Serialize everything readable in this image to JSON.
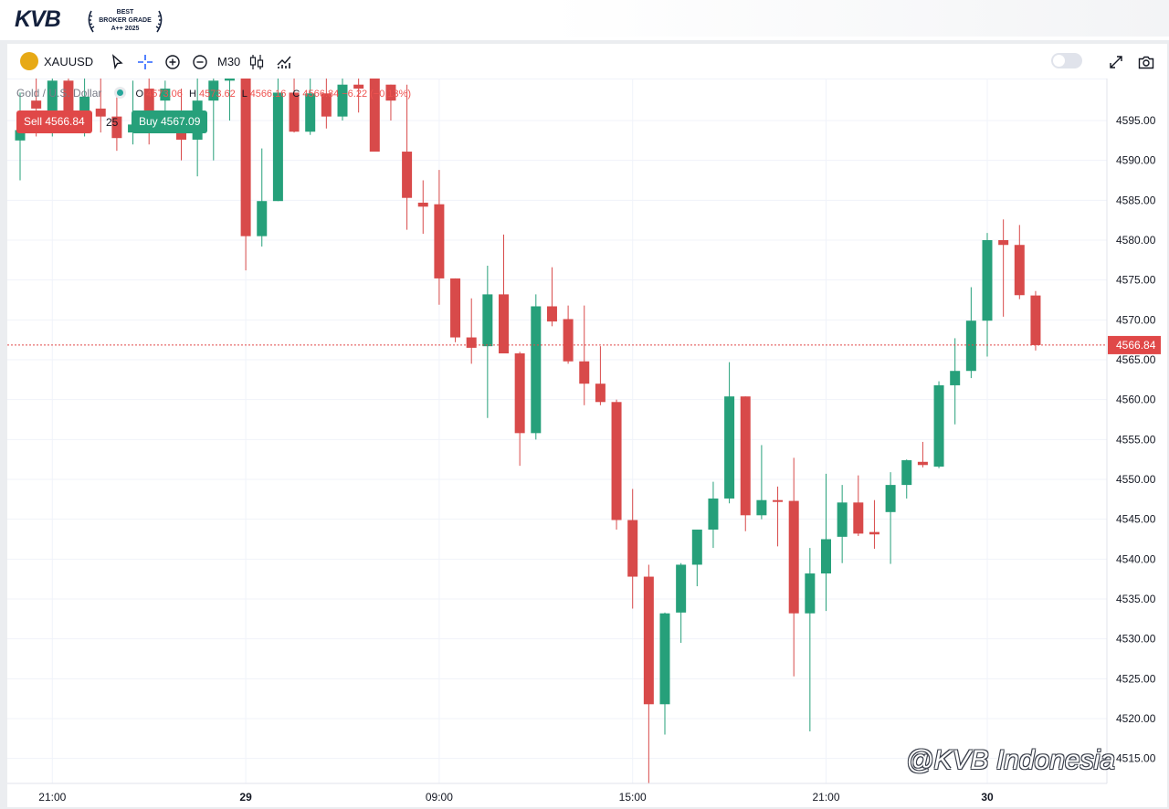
{
  "brand": {
    "logo_text": "KVB",
    "award_lines": [
      "BEST",
      "BROKER GRADE",
      "A++ 2025"
    ]
  },
  "toolbar": {
    "symbol": "XAUUSD",
    "timeframe": "M30",
    "icons": [
      "cursor-icon",
      "crosshair-icon",
      "zoom-in-icon",
      "zoom-out-icon",
      "candles-icon",
      "indicators-icon",
      "fullscreen-icon",
      "camera-icon"
    ]
  },
  "legend": {
    "title": "Gold / U.S. Dollar",
    "o_label": "O",
    "o_value": "4573.06",
    "h_label": "H",
    "h_value": "4573.62",
    "l_label": "L",
    "l_value": "4566.16",
    "c_label": "C",
    "c_value": "4566.84",
    "change": "−6.22 (−0.13%)"
  },
  "trade": {
    "sell_label": "Sell 4566.84",
    "spread": "25",
    "buy_label": "Buy 4567.09"
  },
  "watermark": "@KVB Indonesia",
  "colors": {
    "up": "#26a07a",
    "down": "#d84a4a",
    "price_line": "#e04848"
  },
  "chart_data": {
    "type": "candlestick",
    "symbol": "XAUUSD",
    "timeframe": "M30",
    "ylim": [
      4510,
      4600
    ],
    "y_ticks": [
      4515,
      4520,
      4525,
      4530,
      4535,
      4540,
      4545,
      4550,
      4555,
      4560,
      4565,
      4570,
      4575,
      4580,
      4585,
      4590,
      4595
    ],
    "x_labels": [
      {
        "bar": 2,
        "label": "21:00",
        "bold": false
      },
      {
        "bar": 14,
        "label": "29",
        "bold": true
      },
      {
        "bar": 26,
        "label": "09:00",
        "bold": false
      },
      {
        "bar": 38,
        "label": "15:00",
        "bold": false
      },
      {
        "bar": 50,
        "label": "21:00",
        "bold": false
      },
      {
        "bar": 60,
        "label": "30",
        "bold": true
      }
    ],
    "last_price": 4566.84,
    "grid": true,
    "candles": [
      {
        "o": 4592.5,
        "h": 4598.5,
        "l": 4587.5,
        "c": 4593.8
      },
      {
        "o": 4597.5,
        "h": 4602,
        "l": 4593,
        "c": 4596.5
      },
      {
        "o": 4594.5,
        "h": 4602,
        "l": 4593,
        "c": 4600
      },
      {
        "o": 4600,
        "h": 4602,
        "l": 4593.5,
        "c": 4596
      },
      {
        "o": 4596,
        "h": 4602,
        "l": 4593,
        "c": 4598
      },
      {
        "o": 4596.5,
        "h": 4602,
        "l": 4593.5,
        "c": 4595.5
      },
      {
        "o": 4595.5,
        "h": 4599,
        "l": 4591.2,
        "c": 4592.8
      },
      {
        "o": 4593.5,
        "h": 4600,
        "l": 4592,
        "c": 4594.5
      },
      {
        "o": 4599,
        "h": 4602,
        "l": 4592,
        "c": 4596
      },
      {
        "o": 4597.5,
        "h": 4600,
        "l": 4596,
        "c": 4599
      },
      {
        "o": 4596,
        "h": 4599,
        "l": 4590,
        "c": 4592.6
      },
      {
        "o": 4592.6,
        "h": 4601,
        "l": 4588,
        "c": 4597.5
      },
      {
        "o": 4597.5,
        "h": 4601,
        "l": 4590,
        "c": 4600
      },
      {
        "o": 4600,
        "h": 4602,
        "l": 4595,
        "c": 4601
      },
      {
        "o": 4601,
        "h": 4603,
        "l": 4576.2,
        "c": 4580.5
      },
      {
        "o": 4580.5,
        "h": 4591.5,
        "l": 4579.2,
        "c": 4584.9
      },
      {
        "o": 4584.9,
        "h": 4603,
        "l": 4584.9,
        "c": 4598.5
      },
      {
        "o": 4598.5,
        "h": 4602,
        "l": 4593.5,
        "c": 4593.6
      },
      {
        "o": 4593.6,
        "h": 4601,
        "l": 4593.2,
        "c": 4598.4
      },
      {
        "o": 4598.4,
        "h": 4602,
        "l": 4594,
        "c": 4595.5
      },
      {
        "o": 4595.5,
        "h": 4602,
        "l": 4595,
        "c": 4599.5
      },
      {
        "o": 4599.5,
        "h": 4601,
        "l": 4596,
        "c": 4599
      },
      {
        "o": 4601,
        "h": 4601.4,
        "l": 4591.5,
        "c": 4591.1
      },
      {
        "o": 4599.5,
        "h": 4599.5,
        "l": 4595,
        "c": 4597.5
      },
      {
        "o": 4591.1,
        "h": 4599.5,
        "l": 4581.3,
        "c": 4585.3
      },
      {
        "o": 4584.7,
        "h": 4587.5,
        "l": 4580.8,
        "c": 4584.2
      },
      {
        "o": 4584.5,
        "h": 4588.8,
        "l": 4571.9,
        "c": 4575.2
      },
      {
        "o": 4575.2,
        "h": 4575.2,
        "l": 4567.2,
        "c": 4567.8
      },
      {
        "o": 4567.8,
        "h": 4572.7,
        "l": 4564.5,
        "c": 4566.5
      },
      {
        "o": 4566.7,
        "h": 4576.8,
        "l": 4557.7,
        "c": 4573.2
      },
      {
        "o": 4573.2,
        "h": 4580.7,
        "l": 4565.8,
        "c": 4565.8
      },
      {
        "o": 4565.8,
        "h": 4566,
        "l": 4551.7,
        "c": 4555.8
      },
      {
        "o": 4555.8,
        "h": 4573.2,
        "l": 4555,
        "c": 4571.7
      },
      {
        "o": 4571.7,
        "h": 4576.6,
        "l": 4569.2,
        "c": 4569.8
      },
      {
        "o": 4570.1,
        "h": 4571.8,
        "l": 4564.5,
        "c": 4564.8
      },
      {
        "o": 4564.8,
        "h": 4571.8,
        "l": 4559.3,
        "c": 4562
      },
      {
        "o": 4562,
        "h": 4566.7,
        "l": 4559.3,
        "c": 4559.7
      },
      {
        "o": 4559.7,
        "h": 4560,
        "l": 4543.7,
        "c": 4544.9
      },
      {
        "o": 4544.9,
        "h": 4548.8,
        "l": 4533.8,
        "c": 4537.8
      },
      {
        "o": 4537.8,
        "h": 4539.3,
        "l": 4510.5,
        "c": 4521.8
      },
      {
        "o": 4521.8,
        "h": 4533.3,
        "l": 4518,
        "c": 4533.2
      },
      {
        "o": 4533.3,
        "h": 4539.5,
        "l": 4529.5,
        "c": 4539.3
      },
      {
        "o": 4539.3,
        "h": 4543.7,
        "l": 4536.6,
        "c": 4543.7
      },
      {
        "o": 4543.7,
        "h": 4549.7,
        "l": 4541.4,
        "c": 4547.6
      },
      {
        "o": 4547.6,
        "h": 4564.7,
        "l": 4547,
        "c": 4560.4
      },
      {
        "o": 4560.4,
        "h": 4560.4,
        "l": 4543.5,
        "c": 4545.5
      },
      {
        "o": 4545.5,
        "h": 4554.3,
        "l": 4545,
        "c": 4547.4
      },
      {
        "o": 4547.4,
        "h": 4549.1,
        "l": 4541.6,
        "c": 4547.3
      },
      {
        "o": 4547.3,
        "h": 4552.7,
        "l": 4525.3,
        "c": 4533.2
      },
      {
        "o": 4533.2,
        "h": 4541.4,
        "l": 4518.4,
        "c": 4538.2
      },
      {
        "o": 4538.2,
        "h": 4550.7,
        "l": 4533.5,
        "c": 4542.5
      },
      {
        "o": 4542.8,
        "h": 4549.3,
        "l": 4539.5,
        "c": 4547.1
      },
      {
        "o": 4547.1,
        "h": 4550.5,
        "l": 4542.9,
        "c": 4543.2
      },
      {
        "o": 4543.4,
        "h": 4547.4,
        "l": 4541.3,
        "c": 4543.1
      },
      {
        "o": 4545.9,
        "h": 4550.9,
        "l": 4539.4,
        "c": 4549.3
      },
      {
        "o": 4549.3,
        "h": 4552.5,
        "l": 4547.6,
        "c": 4552.4
      },
      {
        "o": 4552.2,
        "h": 4554.7,
        "l": 4551.5,
        "c": 4551.8
      },
      {
        "o": 4551.6,
        "h": 4562.3,
        "l": 4551.4,
        "c": 4561.8
      },
      {
        "o": 4561.8,
        "h": 4567.7,
        "l": 4556.9,
        "c": 4563.6
      },
      {
        "o": 4563.6,
        "h": 4574.1,
        "l": 4562.7,
        "c": 4569.9
      },
      {
        "o": 4569.9,
        "h": 4580.9,
        "l": 4565.4,
        "c": 4580
      },
      {
        "o": 4580,
        "h": 4582.6,
        "l": 4570.4,
        "c": 4579.4
      },
      {
        "o": 4579.4,
        "h": 4581.9,
        "l": 4572.6,
        "c": 4573.1
      },
      {
        "o": 4573.06,
        "h": 4573.62,
        "l": 4566.16,
        "c": 4566.84
      }
    ]
  }
}
